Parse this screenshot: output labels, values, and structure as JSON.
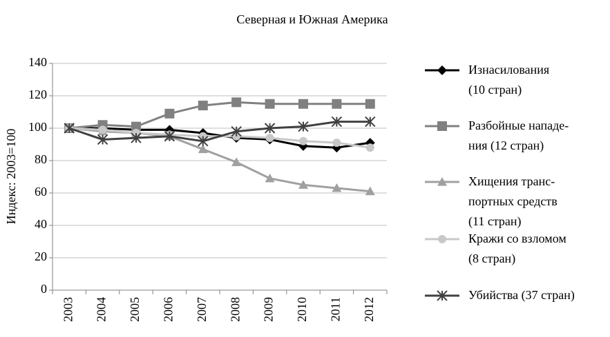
{
  "chart_data": {
    "type": "line",
    "title": "Северная и Южная Америка",
    "y_label": "Индекс: 2003=100",
    "categories": [
      "2003",
      "2004",
      "2005",
      "2006",
      "2007",
      "2008",
      "2009",
      "2010",
      "2011",
      "2012"
    ],
    "series": [
      {
        "name": "Изнасилования\n(10 стран)",
        "color": "#000000",
        "marker": "diamond",
        "values": [
          100,
          100,
          99,
          99,
          97,
          94,
          93,
          89,
          88,
          91
        ]
      },
      {
        "name": "Разбойные нападе-\nния (12 стран)",
        "color": "#808080",
        "marker": "square",
        "values": [
          100,
          102,
          101,
          109,
          114,
          116,
          115,
          115,
          115,
          115
        ]
      },
      {
        "name": "Хищения транс-\nпортных средств\n(11 стран)",
        "color": "#a0a0a0",
        "marker": "triangle",
        "values": [
          100,
          98,
          97,
          95,
          87,
          79,
          69,
          65,
          63,
          61
        ]
      },
      {
        "name": "Кражи со взломом\n(8 стран)",
        "color": "#c8c8c8",
        "marker": "circle",
        "values": [
          100,
          99,
          97,
          96,
          95,
          95,
          94,
          92,
          91,
          88
        ]
      },
      {
        "name": "Убийства (37 стран)",
        "color": "#404040",
        "marker": "asterisk",
        "values": [
          100,
          93,
          94,
          95,
          92,
          98,
          100,
          101,
          104,
          104
        ]
      }
    ],
    "ylim": [
      0,
      140
    ],
    "yticks": [
      0,
      20,
      40,
      60,
      80,
      100,
      120,
      140
    ],
    "grid": true
  }
}
